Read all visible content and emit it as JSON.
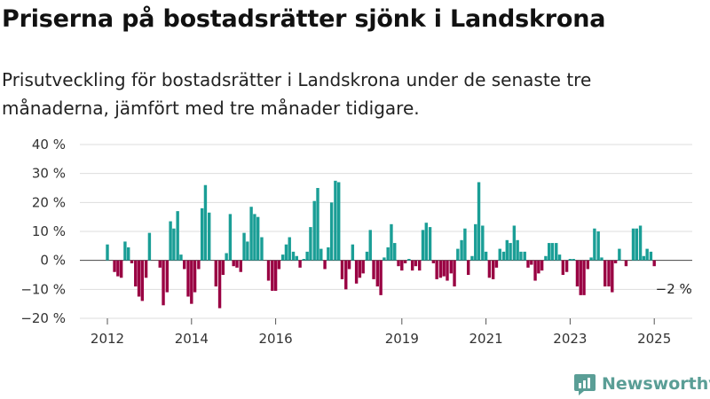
{
  "title": "Priserna på bostadsrätter sjönk i Landskrona",
  "subtitle": "Prisutveckling för bostadsrätter i Landskrona under de senaste tre månaderna, jämfört med tre månader tidigare.",
  "brand": "Newsworthy",
  "colors": {
    "positive": "#1a9e96",
    "negative": "#990042",
    "grid": "#dddddd",
    "brand": "#5a9e96"
  },
  "chart_data": {
    "type": "bar",
    "title": "Priserna på bostadsrätter sjönk i Landskrona",
    "subtitle": "Prisutveckling för bostadsrätter i Landskrona under de senaste tre månaderna, jämfört med tre månader tidigare.",
    "unit": "%",
    "ylim": [
      -20,
      40
    ],
    "y_ticks": [
      40,
      30,
      20,
      10,
      0,
      -10,
      -20
    ],
    "y_tick_labels": [
      "40 %",
      "30 %",
      "20 %",
      "10 %",
      "0 %",
      "−10 %",
      "−20 %"
    ],
    "x_ticks": [
      2012,
      2014,
      2016,
      2019,
      2021,
      2023,
      2025
    ],
    "grid": true,
    "annotation": "−2 %",
    "series": [
      {
        "values": [
          [
            2012.0,
            5.5
          ],
          [
            2012.08,
            0
          ],
          [
            2012.17,
            -4
          ],
          [
            2012.25,
            -5.5
          ],
          [
            2012.33,
            -6
          ],
          [
            2012.42,
            6.5
          ],
          [
            2012.5,
            4.5
          ],
          [
            2012.58,
            -1
          ],
          [
            2012.67,
            -9
          ],
          [
            2012.75,
            -12.5
          ],
          [
            2012.83,
            -14
          ],
          [
            2012.92,
            -6
          ],
          [
            2013.0,
            9.5
          ],
          [
            2013.08,
            0
          ],
          [
            2013.17,
            0
          ],
          [
            2013.25,
            -2.5
          ],
          [
            2013.33,
            -15.5
          ],
          [
            2013.42,
            -11
          ],
          [
            2013.5,
            13.5
          ],
          [
            2013.58,
            11
          ],
          [
            2013.67,
            17
          ],
          [
            2013.75,
            2
          ],
          [
            2013.83,
            -3
          ],
          [
            2013.92,
            -12.5
          ],
          [
            2014.0,
            -15
          ],
          [
            2014.08,
            -11
          ],
          [
            2014.17,
            -3
          ],
          [
            2014.25,
            18
          ],
          [
            2014.33,
            26
          ],
          [
            2014.42,
            16.5
          ],
          [
            2014.5,
            0
          ],
          [
            2014.58,
            -9
          ],
          [
            2014.67,
            -16.5
          ],
          [
            2014.75,
            -5
          ],
          [
            2014.83,
            2.5
          ],
          [
            2014.92,
            16
          ],
          [
            2015.0,
            -2
          ],
          [
            2015.08,
            -2.5
          ],
          [
            2015.17,
            -4
          ],
          [
            2015.25,
            9.5
          ],
          [
            2015.33,
            6.5
          ],
          [
            2015.42,
            18.5
          ],
          [
            2015.5,
            16
          ],
          [
            2015.58,
            15
          ],
          [
            2015.67,
            8
          ],
          [
            2015.75,
            0
          ],
          [
            2015.83,
            -7
          ],
          [
            2015.92,
            -10.5
          ],
          [
            2016.0,
            -10.5
          ],
          [
            2016.08,
            -3
          ],
          [
            2016.17,
            2
          ],
          [
            2016.25,
            5.5
          ],
          [
            2016.33,
            8
          ],
          [
            2016.42,
            3
          ],
          [
            2016.5,
            1.5
          ],
          [
            2016.58,
            -2.5
          ],
          [
            2016.67,
            0.5
          ],
          [
            2016.75,
            3
          ],
          [
            2016.83,
            11.5
          ],
          [
            2016.92,
            20.5
          ],
          [
            2017.0,
            25
          ],
          [
            2017.08,
            4
          ],
          [
            2017.17,
            -3
          ],
          [
            2017.25,
            4.5
          ],
          [
            2017.33,
            20
          ],
          [
            2017.42,
            27.5
          ],
          [
            2017.5,
            27
          ],
          [
            2017.58,
            -6.5
          ],
          [
            2017.67,
            -10
          ],
          [
            2017.75,
            -3
          ],
          [
            2017.83,
            5.5
          ],
          [
            2017.92,
            -8
          ],
          [
            2018.0,
            -6
          ],
          [
            2018.08,
            -4.5
          ],
          [
            2018.17,
            3
          ],
          [
            2018.25,
            10.5
          ],
          [
            2018.33,
            -6.5
          ],
          [
            2018.42,
            -9
          ],
          [
            2018.5,
            -12
          ],
          [
            2018.58,
            1
          ],
          [
            2018.67,
            4.5
          ],
          [
            2018.75,
            12.5
          ],
          [
            2018.83,
            6
          ],
          [
            2018.92,
            -2
          ],
          [
            2019.0,
            -3.5
          ],
          [
            2019.08,
            -1
          ],
          [
            2019.17,
            0.5
          ],
          [
            2019.25,
            -3.5
          ],
          [
            2019.33,
            -2
          ],
          [
            2019.42,
            -3.5
          ],
          [
            2019.5,
            10.5
          ],
          [
            2019.58,
            13
          ],
          [
            2019.67,
            11.5
          ],
          [
            2019.75,
            -1
          ],
          [
            2019.83,
            -6.5
          ],
          [
            2019.92,
            -6
          ],
          [
            2020.0,
            -5.5
          ],
          [
            2020.08,
            -7
          ],
          [
            2020.17,
            -4.5
          ],
          [
            2020.25,
            -9
          ],
          [
            2020.33,
            4
          ],
          [
            2020.42,
            7
          ],
          [
            2020.5,
            11
          ],
          [
            2020.58,
            -5
          ],
          [
            2020.67,
            1.5
          ],
          [
            2020.75,
            12.5
          ],
          [
            2020.83,
            27
          ],
          [
            2020.92,
            12
          ],
          [
            2021.0,
            3
          ],
          [
            2021.08,
            -6
          ],
          [
            2021.17,
            -6.5
          ],
          [
            2021.25,
            -2.5
          ],
          [
            2021.33,
            4
          ],
          [
            2021.42,
            3
          ],
          [
            2021.5,
            7
          ],
          [
            2021.58,
            6
          ],
          [
            2021.67,
            12
          ],
          [
            2021.75,
            7
          ],
          [
            2021.83,
            3
          ],
          [
            2021.92,
            3
          ],
          [
            2022.0,
            -2.5
          ],
          [
            2022.08,
            -1.5
          ],
          [
            2022.17,
            -7
          ],
          [
            2022.25,
            -4.5
          ],
          [
            2022.33,
            -3.5
          ],
          [
            2022.42,
            1.5
          ],
          [
            2022.5,
            6
          ],
          [
            2022.58,
            6
          ],
          [
            2022.67,
            6
          ],
          [
            2022.75,
            2
          ],
          [
            2022.83,
            -5
          ],
          [
            2022.92,
            -4
          ],
          [
            2023.0,
            0.5
          ],
          [
            2023.08,
            0.5
          ],
          [
            2023.17,
            -9
          ],
          [
            2023.25,
            -12
          ],
          [
            2023.33,
            -12
          ],
          [
            2023.42,
            -3
          ],
          [
            2023.5,
            1
          ],
          [
            2023.58,
            11
          ],
          [
            2023.67,
            10
          ],
          [
            2023.75,
            1
          ],
          [
            2023.83,
            -9
          ],
          [
            2023.92,
            -9
          ],
          [
            2024.0,
            -11
          ],
          [
            2024.08,
            -1
          ],
          [
            2024.17,
            4
          ],
          [
            2024.25,
            0
          ],
          [
            2024.33,
            -2
          ],
          [
            2024.42,
            0
          ],
          [
            2024.5,
            11
          ],
          [
            2024.58,
            11
          ],
          [
            2024.67,
            12
          ],
          [
            2024.75,
            1.5
          ],
          [
            2024.83,
            4
          ],
          [
            2024.92,
            3
          ],
          [
            2025.0,
            -2
          ]
        ]
      }
    ]
  }
}
